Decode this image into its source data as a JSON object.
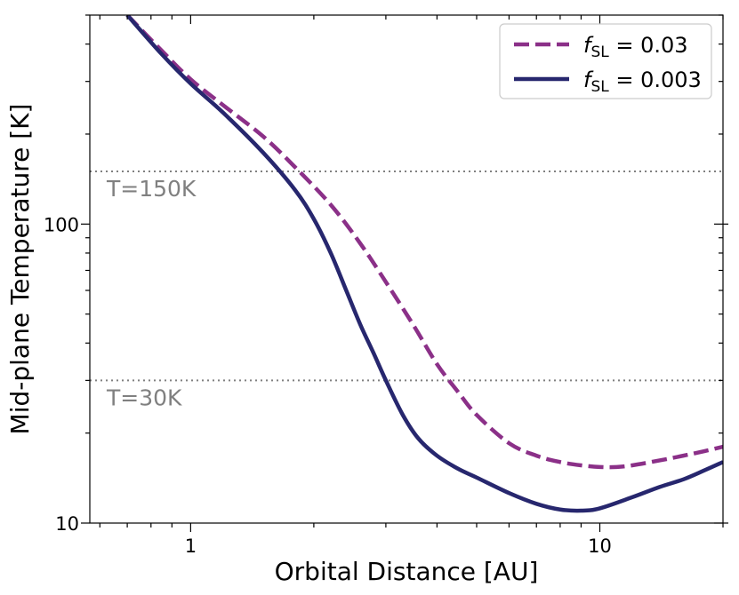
{
  "chart_data": {
    "type": "line",
    "xlabel": "Orbital Distance [AU]",
    "ylabel": "Mid-plane Temperature [K]",
    "xscale": "log",
    "yscale": "log",
    "xlim": [
      0.567,
      20
    ],
    "ylim": [
      10,
      500
    ],
    "xticks": [
      {
        "value": 1,
        "label": "1"
      },
      {
        "value": 10,
        "label": "10"
      }
    ],
    "yticks": [
      {
        "value": 10,
        "label": "10"
      },
      {
        "value": 100,
        "label": "100"
      }
    ],
    "grid": false,
    "legend_position": "top-right",
    "reference_lines": [
      {
        "y": 150,
        "label": "T=150K",
        "color": "#808080",
        "style": "dotted"
      },
      {
        "y": 30,
        "label": "T=30K",
        "color": "#808080",
        "style": "dotted"
      }
    ],
    "series": [
      {
        "name": "f_SL = 0.03",
        "legend_symbol": "f",
        "legend_sub": "SL",
        "legend_value": "= 0.03",
        "color": "#8b3088",
        "style": "dashed",
        "x": [
          0.7,
          0.85,
          1.0,
          1.2,
          1.5,
          1.8,
          2.2,
          2.6,
          3.0,
          3.5,
          4.0,
          4.5,
          5.0,
          6.0,
          7.0,
          8.0,
          9.0,
          10.0,
          11.0,
          12.0,
          14.0,
          16.0,
          18.0,
          20.0
        ],
        "y": [
          500,
          380,
          305,
          250,
          197,
          155,
          116,
          86,
          64,
          46,
          34,
          27.5,
          23,
          18.5,
          16.8,
          16.0,
          15.6,
          15.4,
          15.4,
          15.6,
          16.2,
          16.8,
          17.4,
          18.0
        ]
      },
      {
        "name": "f_SL = 0.003",
        "legend_symbol": "f",
        "legend_sub": "SL",
        "legend_value": "= 0.003",
        "color": "#27276e",
        "style": "solid",
        "x": [
          0.7,
          0.85,
          1.0,
          1.2,
          1.5,
          1.8,
          2.0,
          2.2,
          2.4,
          2.6,
          2.8,
          3.0,
          3.3,
          3.6,
          4.0,
          4.5,
          5.0,
          6.0,
          7.0,
          8.0,
          9.0,
          10.0,
          12.0,
          14.0,
          16.0,
          18.0,
          20.0
        ],
        "y": [
          500,
          370,
          295,
          236,
          174,
          130,
          104,
          80,
          60,
          46,
          37,
          30,
          23,
          19.2,
          16.8,
          15.2,
          14.2,
          12.6,
          11.6,
          11.1,
          11.0,
          11.2,
          12.2,
          13.2,
          14.0,
          15.0,
          16.0
        ]
      }
    ]
  }
}
